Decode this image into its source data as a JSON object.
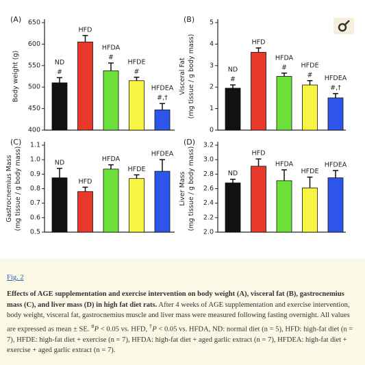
{
  "chart_data": [
    {
      "type": "bar",
      "panel": "(A)",
      "ylabel": [
        "Body weight (g)"
      ],
      "categories": [
        "ND",
        "HFD",
        "HFDA",
        "HFDE",
        "HFDEA"
      ],
      "values": [
        510,
        605,
        538,
        515,
        447
      ],
      "errors": [
        12,
        15,
        18,
        8,
        15
      ],
      "annotations": [
        "#",
        null,
        "#",
        "#",
        "#,†"
      ],
      "colors": [
        "#111111",
        "#e8392b",
        "#6ee03a",
        "#f7f542",
        "#2d55ea"
      ],
      "ylim": [
        400,
        650
      ],
      "yticks": [
        400,
        450,
        500,
        550,
        600,
        650
      ]
    },
    {
      "type": "bar",
      "panel": "(B)",
      "ylabel": [
        "Visceral Fat",
        "(mg tissue / g body mass)"
      ],
      "categories": [
        "ND",
        "HFD",
        "HFDA",
        "HFDE",
        "HFDEA"
      ],
      "values": [
        1.95,
        3.62,
        2.5,
        2.1,
        1.5
      ],
      "errors": [
        0.15,
        0.2,
        0.15,
        0.2,
        0.2
      ],
      "annotations": [
        "#",
        null,
        "#",
        "#",
        "#,†"
      ],
      "colors": [
        "#111111",
        "#e8392b",
        "#6ee03a",
        "#f7f542",
        "#2d55ea"
      ],
      "ylim": [
        0,
        5
      ],
      "yticks": [
        0,
        1,
        2,
        3,
        4,
        5
      ]
    },
    {
      "type": "bar",
      "panel": "(C)",
      "ylabel": [
        "Gastrocnemius Mass",
        "(mg tissue / g body mass)"
      ],
      "categories": [
        "ND",
        "HFD",
        "HFDA",
        "HFDE",
        "HFDEA"
      ],
      "values": [
        0.875,
        0.78,
        0.935,
        0.87,
        0.92
      ],
      "errors": [
        0.065,
        0.03,
        0.03,
        0.025,
        0.08
      ],
      "annotations": [
        null,
        null,
        null,
        null,
        null
      ],
      "colors": [
        "#111111",
        "#e8392b",
        "#6ee03a",
        "#f7f542",
        "#2d55ea"
      ],
      "ylim": [
        0.5,
        1.1
      ],
      "yticks": [
        0.5,
        0.6,
        0.7,
        0.8,
        0.9,
        {
          "value": 1,
          "label": "1.0"
        },
        1.1
      ]
    },
    {
      "type": "bar",
      "panel": "(D)",
      "ylabel": [
        "Liver Mass",
        "(mg tissue / g body mass)"
      ],
      "categories": [
        "ND",
        "HFD",
        "HFDA",
        "HFDE",
        "HFDEA"
      ],
      "values": [
        2.68,
        2.91,
        2.71,
        2.61,
        2.75
      ],
      "errors": [
        0.05,
        0.1,
        0.15,
        0.15,
        0.1
      ],
      "annotations": [
        null,
        null,
        null,
        null,
        null
      ],
      "colors": [
        "#111111",
        "#e8392b",
        "#6ee03a",
        "#f7f542",
        "#2d55ea"
      ],
      "ylim": [
        2,
        3.2
      ],
      "yticks": [
        {
          "value": 2,
          "label": "2.0"
        },
        2.2,
        2.4,
        2.6,
        2.8,
        {
          "value": 3,
          "label": "3.0"
        },
        3.2
      ]
    }
  ],
  "caption": {
    "link": "Fig. 2",
    "title": "Effects of AGE supplementation and exercise intervention on body weight (A), visceral fat (B), gastrocnemius mass (C), and liver mass (D) in high fat diet rats.",
    "text_1": "After 4 weeks of AGE supplementation and exercise intervention, body weight, visceral fat, gastrocnemius muscle and liver mass were measured following fasting overnight. All values are expressed as mean ± SE.",
    "sup_1": "#",
    "p_1": "P",
    "text_2": "< 0.05 vs. HFD,",
    "sup_2": "†",
    "p_2": "P",
    "text_3": "< 0.05 vs. HFDA, ND: normal diet (n = 5), HFD: high-fat diet (n = 7), HFDE: high-fat diet + exercise (n = 7), HFDA: high-fat diet + aged garlic extract (n = 7), HFDEA: high-fat diet + exercise + aged garlic extract (n = 7)."
  }
}
